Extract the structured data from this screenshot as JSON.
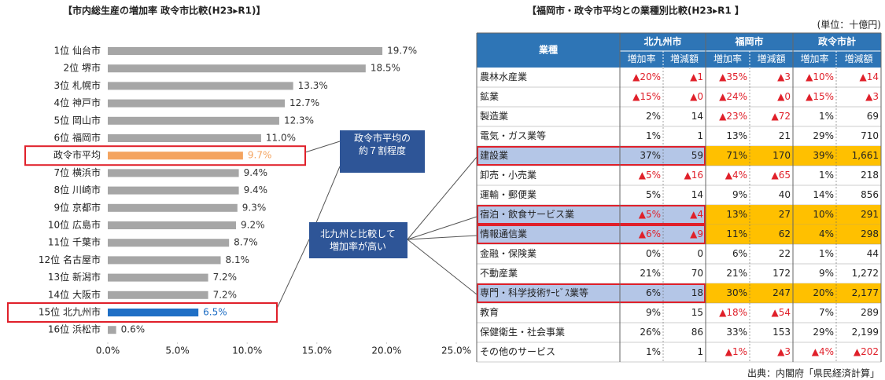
{
  "chart_data": {
    "type": "bar",
    "orientation": "horizontal",
    "title": "【市内総生産の増加率 政令市比較(H23▸R1)】",
    "categories": [
      "1位 仙台市",
      "2位 堺市",
      "3位 札幌市",
      "4位 神戸市",
      "5位 岡山市",
      "6位 福岡市",
      "政令市平均",
      "7位 横浜市",
      "8位 川崎市",
      "9位 京都市",
      "10位 広島市",
      "11位 千葉市",
      "12位 名古屋市",
      "13位 新潟市",
      "14位 大阪市",
      "15位 北九州市",
      "16位 浜松市"
    ],
    "values": [
      19.7,
      18.5,
      13.3,
      12.7,
      12.3,
      11.0,
      9.7,
      9.4,
      9.4,
      9.3,
      9.2,
      8.7,
      8.1,
      7.2,
      7.2,
      6.5,
      0.6
    ],
    "value_labels": [
      "19.7%",
      "18.5%",
      "13.3%",
      "12.7%",
      "12.3%",
      "11.0%",
      "9.7%",
      "9.4%",
      "9.4%",
      "9.3%",
      "9.2%",
      "8.7%",
      "8.1%",
      "7.2%",
      "7.2%",
      "6.5%",
      "0.6%"
    ],
    "colors": [
      "#a6a6a6",
      "#a6a6a6",
      "#a6a6a6",
      "#a6a6a6",
      "#a6a6a6",
      "#a6a6a6",
      "#f4a460",
      "#a6a6a6",
      "#a6a6a6",
      "#a6a6a6",
      "#a6a6a6",
      "#a6a6a6",
      "#a6a6a6",
      "#a6a6a6",
      "#a6a6a6",
      "#1f6fc5",
      "#a6a6a6"
    ],
    "xlim": [
      0,
      25
    ],
    "xticks": [
      {
        "value": 0,
        "label": "0.0%"
      },
      {
        "value": 5,
        "label": "5.0%"
      },
      {
        "value": 10,
        "label": "10.0%"
      },
      {
        "value": 15,
        "label": "15.0%"
      },
      {
        "value": 20,
        "label": "20.0%"
      },
      {
        "value": 25,
        "label": "25.0%"
      }
    ],
    "annotations": [
      "政令市平均の約７割程度",
      "北九州と比較して増加率が高い"
    ]
  },
  "table": {
    "title": "【福岡市・政令市平均との業種別比較(H23▸R1 】",
    "unit": "(単位：十億円)",
    "header": "業種",
    "groups": [
      "北九州市",
      "福岡市",
      "政令市計"
    ],
    "subheaders": [
      "増加率",
      "増減額"
    ],
    "rows": [
      [
        "農林水産業",
        "▲20%",
        "▲1",
        "▲35%",
        "▲3",
        "▲10%",
        "▲14"
      ],
      [
        "鉱業",
        "▲15%",
        "▲0",
        "▲24%",
        "▲0",
        "▲15%",
        "▲3"
      ],
      [
        "製造業",
        "2%",
        "14",
        "▲23%",
        "▲72",
        "1%",
        "69"
      ],
      [
        "電気・ガス業等",
        "1%",
        "1",
        "13%",
        "21",
        "29%",
        "710"
      ],
      [
        "建設業",
        "37%",
        "59",
        "71%",
        "170",
        "39%",
        "1,661"
      ],
      [
        "卸売・小売業",
        "▲5%",
        "▲16",
        "▲4%",
        "▲65",
        "1%",
        "218"
      ],
      [
        "運輸・郵便業",
        "5%",
        "14",
        "9%",
        "40",
        "14%",
        "856"
      ],
      [
        "宿泊・飲食サービス業",
        "▲5%",
        "▲4",
        "13%",
        "27",
        "10%",
        "291"
      ],
      [
        "情報通信業",
        "▲6%",
        "▲9",
        "11%",
        "62",
        "4%",
        "298"
      ],
      [
        "金融・保険業",
        "0%",
        "0",
        "6%",
        "22",
        "1%",
        "44"
      ],
      [
        "不動産業",
        "21%",
        "70",
        "21%",
        "172",
        "9%",
        "1,272"
      ],
      [
        "専門・科学技術ｻｰﾋﾞｽ業等",
        "6%",
        "18",
        "30%",
        "247",
        "20%",
        "2,177"
      ],
      [
        "教育",
        "9%",
        "15",
        "▲18%",
        "▲54",
        "7%",
        "289"
      ],
      [
        "保健衛生・社会事業",
        "26%",
        "86",
        "33%",
        "153",
        "29%",
        "2,199"
      ],
      [
        "その他のサービス",
        "1%",
        "1",
        "▲1%",
        "▲3",
        "▲4%",
        "▲202"
      ]
    ],
    "source": "出典：内閣府「県民経済計算」"
  }
}
